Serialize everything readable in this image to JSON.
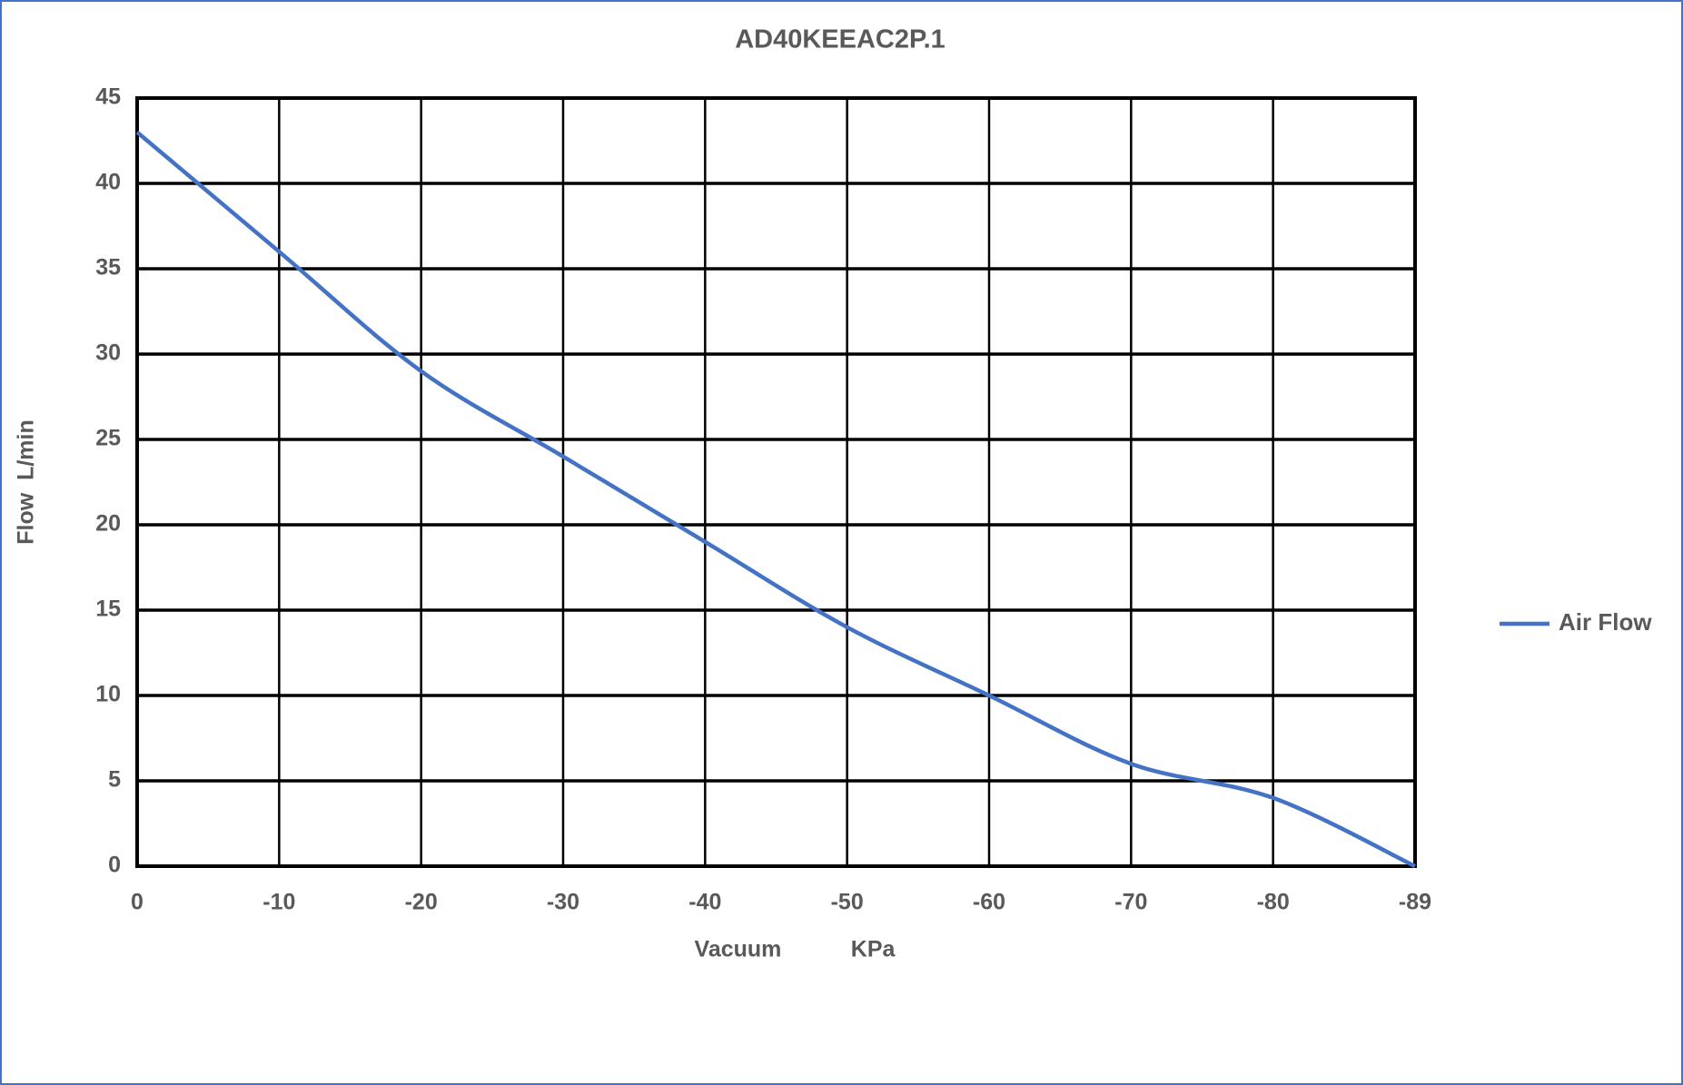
{
  "chart_data": {
    "type": "line",
    "title": "AD40KEEAC2P.1",
    "x_label": "Vacuum           KPa",
    "y_label": "Flow  L/min",
    "categories": [
      "0",
      "-10",
      "-20",
      "-30",
      "-40",
      "-50",
      "-60",
      "-70",
      "-80",
      "-89"
    ],
    "series": [
      {
        "name": "Air Flow",
        "color": "#4472c4",
        "values": [
          43,
          36,
          29,
          24,
          19,
          14,
          10,
          6,
          4,
          0
        ]
      }
    ],
    "ylim": [
      0,
      45
    ],
    "yticks": [
      0,
      5,
      10,
      15,
      20,
      25,
      30,
      35,
      40,
      45
    ],
    "grid": true,
    "legend": "right"
  }
}
